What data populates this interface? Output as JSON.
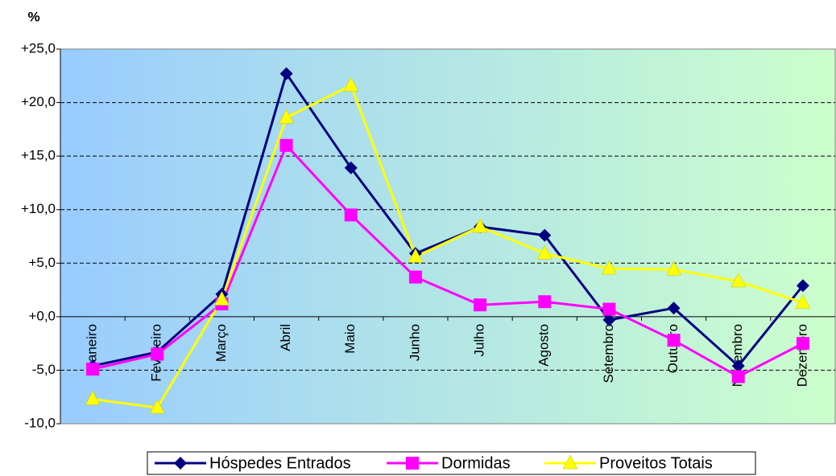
{
  "chart_data": {
    "type": "line",
    "ylabel": "%",
    "categories": [
      "Janeiro",
      "Fevereiro",
      "Março",
      "Abril",
      "Maio",
      "Junho",
      "Julho",
      "Agosto",
      "Setembro",
      "Outubro",
      "Novembro",
      "Dezembro"
    ],
    "series": [
      {
        "name": "Hóspedes Entrados",
        "color": "#000080",
        "marker": "diamond",
        "values": [
          -4.6,
          -3.3,
          2.1,
          22.7,
          13.9,
          5.9,
          8.4,
          7.6,
          -0.3,
          0.8,
          -4.6,
          2.9
        ]
      },
      {
        "name": "Dormidas",
        "color": "#ff00ff",
        "marker": "square",
        "values": [
          -4.9,
          -3.5,
          1.2,
          16.0,
          9.5,
          3.7,
          1.1,
          1.4,
          0.7,
          -2.2,
          -5.6,
          -2.5
        ]
      },
      {
        "name": "Proveitos Totais",
        "color": "#ffff00",
        "marker": "triangle",
        "values": [
          -7.7,
          -8.5,
          1.6,
          18.6,
          21.6,
          5.6,
          8.4,
          5.9,
          4.5,
          4.4,
          3.3,
          1.3
        ]
      }
    ],
    "ylim": [
      -10,
      25
    ],
    "yticks": [
      {
        "value": -10,
        "label": "-10,0"
      },
      {
        "value": -5,
        "label": "-5,0"
      },
      {
        "value": 0,
        "label": "+0,0"
      },
      {
        "value": 5,
        "label": "+5,0"
      },
      {
        "value": 10,
        "label": "+10,0"
      },
      {
        "value": 15,
        "label": "+15,0"
      },
      {
        "value": 20,
        "label": "+20,0"
      },
      {
        "value": 25,
        "label": "+25,0"
      }
    ],
    "grid": true,
    "legend": "bottom"
  }
}
